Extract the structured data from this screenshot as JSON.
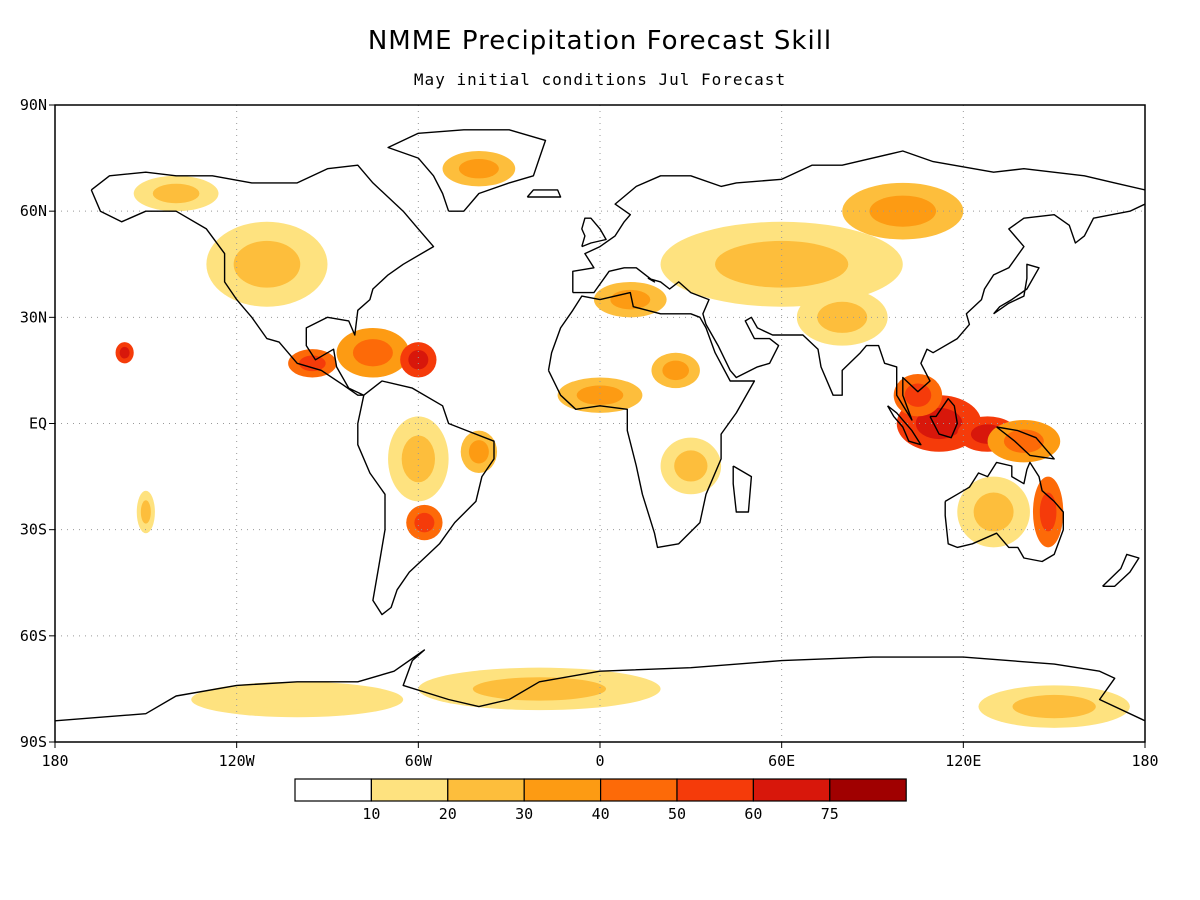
{
  "title": "NMME Precipitation Forecast Skill",
  "subtitle": "May initial conditions   Jul Forecast",
  "map": {
    "projection": "equirectangular",
    "lon_range": [
      -180,
      180
    ],
    "lat_range": [
      -90,
      90
    ],
    "grid": "dotted",
    "lat_labels": [
      {
        "lat": 90,
        "label": "90N"
      },
      {
        "lat": 60,
        "label": "60N"
      },
      {
        "lat": 30,
        "label": "30N"
      },
      {
        "lat": 0,
        "label": "EQ"
      },
      {
        "lat": -30,
        "label": "30S"
      },
      {
        "lat": -60,
        "label": "60S"
      },
      {
        "lat": -90,
        "label": "90S"
      }
    ],
    "lon_labels": [
      {
        "lon": -180,
        "label": "180"
      },
      {
        "lon": -120,
        "label": "120W"
      },
      {
        "lon": -60,
        "label": "60W"
      },
      {
        "lon": 0,
        "label": "0"
      },
      {
        "lon": 60,
        "label": "60E"
      },
      {
        "lon": 120,
        "label": "120E"
      },
      {
        "lon": 180,
        "label": "180"
      }
    ]
  },
  "colorbar": {
    "colors": [
      "#ffffff",
      "#fee27f",
      "#fdbe3c",
      "#fd9b13",
      "#fd6a08",
      "#f53b0a",
      "#d8170b",
      "#a00000"
    ],
    "labels": [
      "10",
      "20",
      "30",
      "40",
      "50",
      "60",
      "75"
    ]
  },
  "skill_regions": [
    {
      "lon": 112,
      "lat": 0,
      "rx": 14,
      "ry": 8,
      "level": 6
    },
    {
      "lon": 128,
      "lat": -3,
      "rx": 10,
      "ry": 5,
      "level": 6
    },
    {
      "lon": 105,
      "lat": 8,
      "rx": 8,
      "ry": 6,
      "level": 5
    },
    {
      "lon": 140,
      "lat": -5,
      "rx": 12,
      "ry": 6,
      "level": 4
    },
    {
      "lon": 148,
      "lat": -25,
      "rx": 5,
      "ry": 10,
      "level": 5
    },
    {
      "lon": 130,
      "lat": -25,
      "rx": 12,
      "ry": 10,
      "level": 2
    },
    {
      "lon": -75,
      "lat": 20,
      "rx": 12,
      "ry": 7,
      "level": 4
    },
    {
      "lon": -60,
      "lat": 18,
      "rx": 6,
      "ry": 5,
      "level": 6
    },
    {
      "lon": -95,
      "lat": 17,
      "rx": 8,
      "ry": 4,
      "level": 5
    },
    {
      "lon": -157,
      "lat": 20,
      "rx": 3,
      "ry": 3,
      "level": 6
    },
    {
      "lon": -58,
      "lat": -28,
      "rx": 6,
      "ry": 5,
      "level": 5
    },
    {
      "lon": -60,
      "lat": -10,
      "rx": 10,
      "ry": 12,
      "level": 2
    },
    {
      "lon": -40,
      "lat": -8,
      "rx": 6,
      "ry": 6,
      "level": 3
    },
    {
      "lon": 0,
      "lat": 8,
      "rx": 14,
      "ry": 5,
      "level": 3
    },
    {
      "lon": 25,
      "lat": 15,
      "rx": 8,
      "ry": 5,
      "level": 3
    },
    {
      "lon": 30,
      "lat": -12,
      "rx": 10,
      "ry": 8,
      "level": 2
    },
    {
      "lon": 60,
      "lat": 45,
      "rx": 40,
      "ry": 12,
      "level": 2
    },
    {
      "lon": 10,
      "lat": 35,
      "rx": 12,
      "ry": 5,
      "level": 3
    },
    {
      "lon": 100,
      "lat": 60,
      "rx": 20,
      "ry": 8,
      "level": 3
    },
    {
      "lon": -110,
      "lat": 45,
      "rx": 20,
      "ry": 12,
      "level": 2
    },
    {
      "lon": -140,
      "lat": 65,
      "rx": 14,
      "ry": 5,
      "level": 2
    },
    {
      "lon": -40,
      "lat": 72,
      "rx": 12,
      "ry": 5,
      "level": 3
    },
    {
      "lon": -20,
      "lat": -75,
      "rx": 40,
      "ry": 6,
      "level": 2
    },
    {
      "lon": 150,
      "lat": -80,
      "rx": 25,
      "ry": 6,
      "level": 2
    },
    {
      "lon": -100,
      "lat": -78,
      "rx": 35,
      "ry": 5,
      "level": 1
    },
    {
      "lon": -150,
      "lat": -25,
      "rx": 3,
      "ry": 6,
      "level": 2
    },
    {
      "lon": 80,
      "lat": 30,
      "rx": 15,
      "ry": 8,
      "level": 2
    }
  ],
  "coastlines": [
    [
      [
        -168,
        66
      ],
      [
        -162,
        70
      ],
      [
        -150,
        71
      ],
      [
        -140,
        70
      ],
      [
        -128,
        70
      ],
      [
        -115,
        68
      ],
      [
        -100,
        68
      ],
      [
        -90,
        72
      ],
      [
        -80,
        73
      ],
      [
        -75,
        68
      ],
      [
        -65,
        60
      ],
      [
        -60,
        55
      ],
      [
        -55,
        50
      ],
      [
        -65,
        45
      ],
      [
        -70,
        42
      ],
      [
        -75,
        38
      ],
      [
        -76,
        35
      ],
      [
        -80,
        32
      ],
      [
        -81,
        25
      ],
      [
        -83,
        29
      ],
      [
        -90,
        30
      ],
      [
        -97,
        27
      ],
      [
        -97,
        22
      ],
      [
        -94,
        18
      ],
      [
        -88,
        21
      ],
      [
        -87,
        16
      ],
      [
        -83,
        10
      ],
      [
        -78,
        8
      ],
      [
        -80,
        8
      ],
      [
        -85,
        11
      ],
      [
        -92,
        15
      ],
      [
        -100,
        17
      ],
      [
        -106,
        23
      ],
      [
        -110,
        24
      ],
      [
        -115,
        30
      ],
      [
        -117,
        32
      ],
      [
        -120,
        35
      ],
      [
        -124,
        40
      ],
      [
        -124,
        48
      ],
      [
        -130,
        55
      ],
      [
        -140,
        60
      ],
      [
        -150,
        60
      ],
      [
        -158,
        57
      ],
      [
        -165,
        60
      ],
      [
        -168,
        66
      ]
    ],
    [
      [
        -78,
        8
      ],
      [
        -72,
        12
      ],
      [
        -62,
        10
      ],
      [
        -52,
        5
      ],
      [
        -50,
        0
      ],
      [
        -44,
        -2
      ],
      [
        -35,
        -5
      ],
      [
        -35,
        -10
      ],
      [
        -39,
        -15
      ],
      [
        -41,
        -22
      ],
      [
        -48,
        -28
      ],
      [
        -53,
        -34
      ],
      [
        -58,
        -38
      ],
      [
        -63,
        -42
      ],
      [
        -67,
        -47
      ],
      [
        -69,
        -52
      ],
      [
        -72,
        -54
      ],
      [
        -75,
        -50
      ],
      [
        -73,
        -40
      ],
      [
        -71,
        -30
      ],
      [
        -71,
        -20
      ],
      [
        -76,
        -14
      ],
      [
        -80,
        -6
      ],
      [
        -80,
        0
      ],
      [
        -78,
        8
      ]
    ],
    [
      [
        -17,
        15
      ],
      [
        -16,
        20
      ],
      [
        -13,
        27
      ],
      [
        -9,
        32
      ],
      [
        -6,
        36
      ],
      [
        0,
        35
      ],
      [
        10,
        37
      ],
      [
        11,
        33
      ],
      [
        20,
        31
      ],
      [
        30,
        31
      ],
      [
        33,
        30
      ],
      [
        35,
        27
      ],
      [
        38,
        20
      ],
      [
        43,
        12
      ],
      [
        51,
        12
      ],
      [
        45,
        3
      ],
      [
        40,
        -3
      ],
      [
        40,
        -10
      ],
      [
        35,
        -20
      ],
      [
        33,
        -28
      ],
      [
        26,
        -34
      ],
      [
        19,
        -35
      ],
      [
        18,
        -31
      ],
      [
        14,
        -20
      ],
      [
        12,
        -12
      ],
      [
        9,
        -2
      ],
      [
        9,
        4
      ],
      [
        0,
        5
      ],
      [
        -8,
        4
      ],
      [
        -13,
        8
      ],
      [
        -17,
        15
      ]
    ],
    [
      [
        -9,
        37
      ],
      [
        -9,
        43
      ],
      [
        -2,
        44
      ],
      [
        -5,
        48
      ],
      [
        0,
        50
      ],
      [
        5,
        53
      ],
      [
        8,
        57
      ],
      [
        10,
        59
      ],
      [
        5,
        62
      ],
      [
        12,
        67
      ],
      [
        20,
        70
      ],
      [
        30,
        70
      ],
      [
        40,
        67
      ],
      [
        45,
        68
      ],
      [
        60,
        69
      ],
      [
        70,
        73
      ],
      [
        80,
        73
      ],
      [
        100,
        77
      ],
      [
        110,
        74
      ],
      [
        130,
        71
      ],
      [
        140,
        72
      ],
      [
        160,
        70
      ],
      [
        170,
        68
      ],
      [
        180,
        66
      ]
    ],
    [
      [
        180,
        62
      ],
      [
        175,
        60
      ],
      [
        163,
        58
      ],
      [
        160,
        53
      ],
      [
        157,
        51
      ],
      [
        155,
        56
      ],
      [
        150,
        59
      ],
      [
        140,
        58
      ],
      [
        135,
        55
      ],
      [
        140,
        50
      ],
      [
        135,
        44
      ],
      [
        130,
        42
      ],
      [
        127,
        38
      ],
      [
        126,
        35
      ],
      [
        121,
        31
      ],
      [
        122,
        28
      ],
      [
        118,
        24
      ],
      [
        110,
        20
      ],
      [
        108,
        21
      ],
      [
        106,
        17
      ],
      [
        109,
        12
      ],
      [
        105,
        9
      ],
      [
        100,
        13
      ],
      [
        100,
        8
      ],
      [
        103,
        1
      ],
      [
        98,
        8
      ],
      [
        98,
        16
      ],
      [
        94,
        17
      ],
      [
        92,
        22
      ],
      [
        88,
        22
      ],
      [
        86,
        20
      ],
      [
        80,
        15
      ],
      [
        80,
        8
      ],
      [
        77,
        8
      ],
      [
        73,
        16
      ],
      [
        72,
        21
      ],
      [
        67,
        25
      ],
      [
        62,
        25
      ],
      [
        57,
        25
      ],
      [
        52,
        27
      ],
      [
        50,
        30
      ],
      [
        48,
        29
      ],
      [
        51,
        24
      ],
      [
        56,
        24
      ],
      [
        59,
        22
      ],
      [
        56,
        17
      ],
      [
        52,
        16
      ],
      [
        45,
        13
      ],
      [
        43,
        15
      ],
      [
        39,
        22
      ],
      [
        35,
        28
      ],
      [
        34,
        31
      ],
      [
        36,
        35
      ],
      [
        30,
        37
      ],
      [
        26,
        40
      ],
      [
        23,
        38
      ],
      [
        20,
        40
      ],
      [
        16,
        41
      ],
      [
        18,
        40
      ],
      [
        12,
        44
      ],
      [
        8,
        44
      ],
      [
        3,
        43
      ],
      [
        -2,
        37
      ],
      [
        -9,
        37
      ]
    ],
    [
      [
        114,
        -22
      ],
      [
        114,
        -26
      ],
      [
        115,
        -34
      ],
      [
        118,
        -35
      ],
      [
        123,
        -34
      ],
      [
        131,
        -31
      ],
      [
        135,
        -35
      ],
      [
        138,
        -35
      ],
      [
        140,
        -38
      ],
      [
        146,
        -39
      ],
      [
        150,
        -37
      ],
      [
        153,
        -30
      ],
      [
        153,
        -25
      ],
      [
        150,
        -22
      ],
      [
        146,
        -19
      ],
      [
        145,
        -15
      ],
      [
        142,
        -11
      ],
      [
        141,
        -13
      ],
      [
        140,
        -17
      ],
      [
        136,
        -15
      ],
      [
        136,
        -12
      ],
      [
        131,
        -11
      ],
      [
        128,
        -15
      ],
      [
        125,
        -14
      ],
      [
        122,
        -18
      ],
      [
        118,
        -20
      ],
      [
        114,
        -22
      ]
    ],
    [
      [
        -50,
        60
      ],
      [
        -45,
        60
      ],
      [
        -40,
        65
      ],
      [
        -30,
        68
      ],
      [
        -22,
        70
      ],
      [
        -20,
        75
      ],
      [
        -18,
        80
      ],
      [
        -30,
        83
      ],
      [
        -45,
        83
      ],
      [
        -60,
        82
      ],
      [
        -70,
        78
      ],
      [
        -60,
        75
      ],
      [
        -55,
        70
      ],
      [
        -52,
        65
      ],
      [
        -50,
        60
      ]
    ],
    [
      [
        95,
        5
      ],
      [
        98,
        3
      ],
      [
        103,
        -2
      ],
      [
        106,
        -6
      ],
      [
        102,
        -5
      ],
      [
        100,
        -1
      ],
      [
        97,
        2
      ],
      [
        95,
        5
      ]
    ],
    [
      [
        109,
        2
      ],
      [
        112,
        -3
      ],
      [
        116,
        -4
      ],
      [
        118,
        0
      ],
      [
        117,
        5
      ],
      [
        115,
        7
      ],
      [
        111,
        2
      ],
      [
        109,
        2
      ]
    ],
    [
      [
        131,
        -1
      ],
      [
        138,
        -2
      ],
      [
        144,
        -4
      ],
      [
        150,
        -10
      ],
      [
        142,
        -9
      ],
      [
        137,
        -5
      ],
      [
        131,
        -1
      ]
    ],
    [
      [
        44,
        -12
      ],
      [
        50,
        -15
      ],
      [
        49,
        -25
      ],
      [
        45,
        -25
      ],
      [
        44,
        -17
      ],
      [
        44,
        -12
      ]
    ],
    [
      [
        -180,
        -84
      ],
      [
        -150,
        -82
      ],
      [
        -140,
        -77
      ],
      [
        -120,
        -74
      ],
      [
        -100,
        -73
      ],
      [
        -80,
        -73
      ],
      [
        -68,
        -70
      ],
      [
        -58,
        -64
      ],
      [
        -62,
        -67
      ],
      [
        -65,
        -74
      ],
      [
        -50,
        -78
      ],
      [
        -40,
        -80
      ],
      [
        -30,
        -78
      ],
      [
        -20,
        -73
      ],
      [
        0,
        -70
      ],
      [
        30,
        -69
      ],
      [
        60,
        -67
      ],
      [
        90,
        -66
      ],
      [
        120,
        -66
      ],
      [
        150,
        -68
      ],
      [
        165,
        -70
      ],
      [
        170,
        -72
      ],
      [
        165,
        -78
      ],
      [
        180,
        -84
      ]
    ],
    [
      [
        130,
        31
      ],
      [
        135,
        34
      ],
      [
        140,
        36
      ],
      [
        141,
        41
      ],
      [
        141,
        45
      ],
      [
        145,
        44
      ],
      [
        141,
        38
      ],
      [
        136,
        35
      ],
      [
        132,
        33
      ],
      [
        130,
        31
      ]
    ],
    [
      [
        -6,
        50
      ],
      [
        -3,
        51
      ],
      [
        2,
        52
      ],
      [
        0,
        55
      ],
      [
        -3,
        58
      ],
      [
        -5,
        58
      ],
      [
        -6,
        55
      ],
      [
        -5,
        53
      ],
      [
        -6,
        50
      ]
    ],
    [
      [
        -24,
        64
      ],
      [
        -13,
        64
      ],
      [
        -14,
        66
      ],
      [
        -22,
        66
      ],
      [
        -24,
        64
      ]
    ],
    [
      [
        166,
        -46
      ],
      [
        172,
        -41
      ],
      [
        174,
        -37
      ],
      [
        178,
        -38
      ],
      [
        175,
        -42
      ],
      [
        170,
        -46
      ],
      [
        166,
        -46
      ]
    ]
  ]
}
